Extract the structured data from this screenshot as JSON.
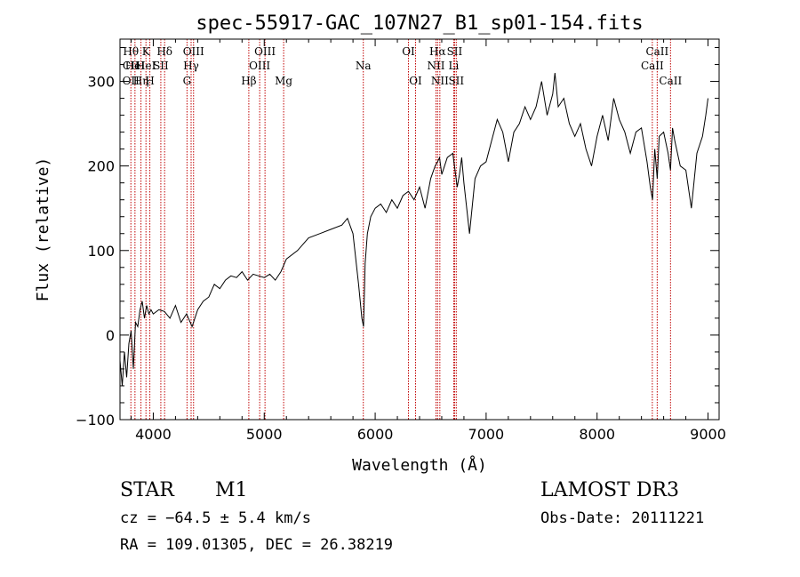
{
  "chart_data": {
    "type": "line",
    "title": "spec-55917-GAC_107N27_B1_sp01-154.fits",
    "xlabel": "Wavelength (Å)",
    "ylabel": "Flux (relative)",
    "xlim": [
      3700,
      9100
    ],
    "ylim": [
      -100,
      350
    ],
    "xticks": [
      4000,
      5000,
      6000,
      7000,
      8000,
      9000
    ],
    "yticks": [
      -100,
      0,
      100,
      200,
      300
    ],
    "grid": false,
    "series": [
      {
        "x": [
          3700,
          3720,
          3740,
          3760,
          3780,
          3800,
          3820,
          3840,
          3860,
          3880,
          3900,
          3920,
          3940,
          3960,
          3980,
          4000,
          4050,
          4100,
          4150,
          4200,
          4250,
          4300,
          4350,
          4400,
          4450,
          4500,
          4550,
          4600,
          4650,
          4700,
          4750,
          4800,
          4850,
          4900,
          4950,
          5000,
          5050,
          5100,
          5150,
          5200,
          5300,
          5400,
          5500,
          5600,
          5700,
          5750,
          5800,
          5850,
          5880,
          5895,
          5910,
          5930,
          5960,
          6000,
          6050,
          6100,
          6150,
          6200,
          6250,
          6300,
          6350,
          6400,
          6450,
          6500,
          6540,
          6563,
          6580,
          6600,
          6650,
          6700,
          6740,
          6760,
          6780,
          6800,
          6850,
          6900,
          6950,
          7000,
          7050,
          7100,
          7150,
          7200,
          7250,
          7300,
          7350,
          7400,
          7450,
          7500,
          7550,
          7600,
          7620,
          7650,
          7700,
          7750,
          7800,
          7850,
          7900,
          7950,
          8000,
          8050,
          8100,
          8150,
          8200,
          8250,
          8300,
          8350,
          8400,
          8450,
          8480,
          8500,
          8520,
          8542,
          8560,
          8600,
          8640,
          8662,
          8680,
          8700,
          8750,
          8800,
          8850,
          8900,
          8950,
          8980,
          9000
        ],
        "values": [
          -30,
          -60,
          -20,
          -50,
          -10,
          5,
          -40,
          15,
          10,
          30,
          40,
          20,
          35,
          25,
          30,
          25,
          30,
          28,
          20,
          35,
          15,
          25,
          10,
          30,
          40,
          45,
          60,
          55,
          65,
          70,
          68,
          75,
          65,
          72,
          70,
          68,
          72,
          65,
          75,
          90,
          100,
          115,
          120,
          125,
          130,
          138,
          120,
          60,
          20,
          10,
          85,
          120,
          140,
          150,
          155,
          145,
          160,
          150,
          165,
          170,
          160,
          175,
          150,
          185,
          200,
          205,
          210,
          190,
          210,
          215,
          175,
          190,
          210,
          180,
          120,
          185,
          200,
          205,
          230,
          255,
          240,
          205,
          240,
          250,
          270,
          255,
          270,
          300,
          260,
          285,
          310,
          270,
          280,
          250,
          235,
          250,
          220,
          200,
          235,
          260,
          230,
          280,
          255,
          240,
          215,
          240,
          245,
          205,
          175,
          160,
          220,
          185,
          235,
          240,
          215,
          195,
          245,
          230,
          200,
          195,
          150,
          215,
          235,
          260,
          280
        ]
      }
    ],
    "annotations": {
      "lines": [
        {
          "wave": 3798,
          "row1": "Hθ",
          "row2": "CII",
          "row3": "OII"
        },
        {
          "wave": 3835,
          "row2": "HeI"
        },
        {
          "wave": 3889,
          "row3": "Hη"
        },
        {
          "wave": 3934,
          "row1": "K",
          "row2": "HeI"
        },
        {
          "wave": 3969,
          "row3": "H"
        },
        {
          "wave": 4068,
          "row2": "SII"
        },
        {
          "wave": 4102,
          "row1": "Hδ"
        },
        {
          "wave": 4304,
          "row3": "G"
        },
        {
          "wave": 4341,
          "row2": "Hγ"
        },
        {
          "wave": 4363,
          "row1": "OIII"
        },
        {
          "wave": 4861,
          "row3": "Hβ"
        },
        {
          "wave": 4959,
          "row2": "OIII"
        },
        {
          "wave": 5007,
          "row1": "OIII"
        },
        {
          "wave": 5175,
          "row3": "Mg"
        },
        {
          "wave": 5893,
          "row2": "Na"
        },
        {
          "wave": 6300,
          "row1": "OI"
        },
        {
          "wave": 6364,
          "row3": "OI"
        },
        {
          "wave": 6548,
          "row2": "NII"
        },
        {
          "wave": 6563,
          "row1": "Hα"
        },
        {
          "wave": 6583,
          "row3": "NII"
        },
        {
          "wave": 6708,
          "row2": "Li"
        },
        {
          "wave": 6716,
          "row1": "SII"
        },
        {
          "wave": 6731,
          "row3": "SII"
        },
        {
          "wave": 8498,
          "row2": "CaII"
        },
        {
          "wave": 8542,
          "row1": "CaII"
        },
        {
          "wave": 8662,
          "row3": "CaII"
        }
      ]
    }
  },
  "info": {
    "class": "STAR",
    "subclass": "M1",
    "survey": "LAMOST DR3",
    "cz": "cz = −64.5 ± 5.4 km/s",
    "obs_date": "Obs-Date: 20111221",
    "coords": "RA = 109.01305, DEC =  26.38219"
  }
}
